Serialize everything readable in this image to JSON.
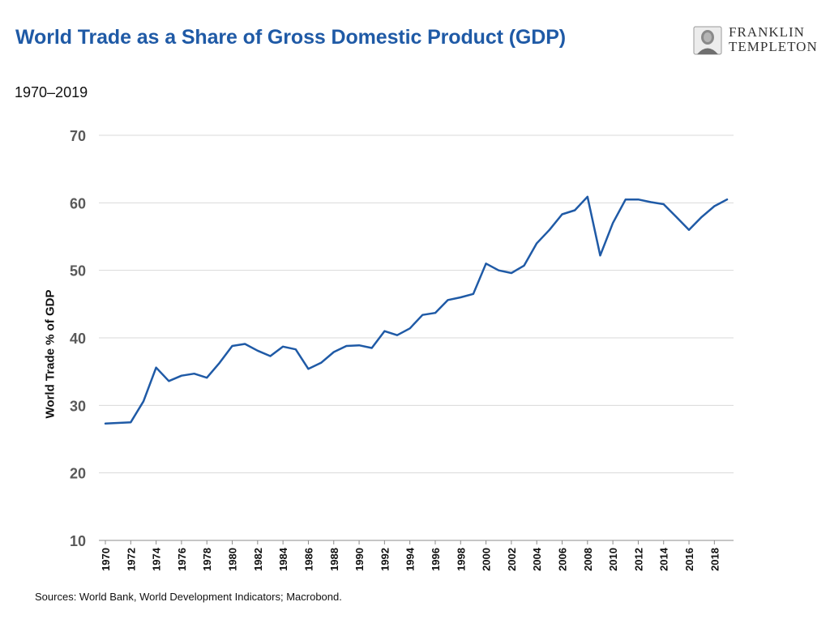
{
  "header": {
    "title": "World Trade as a Share of Gross Domestic Product (GDP)",
    "subtitle": "1970–2019"
  },
  "logo": {
    "line1": "FRANKLIN",
    "line2": "TEMPLETON",
    "icon": "portrait-emblem-icon"
  },
  "footer": {
    "source": "Sources: World Bank, World Development Indicators; Macrobond."
  },
  "colors": {
    "title": "#1f5aa6",
    "line": "#1f5aa6",
    "grid": "#d9d9d9"
  },
  "chart_data": {
    "type": "line",
    "title": "World Trade as a Share of Gross Domestic Product (GDP)",
    "subtitle": "1970–2019",
    "xlabel": "",
    "ylabel": "World Trade % of GDP",
    "ylim": [
      10,
      70
    ],
    "yticks": [
      10,
      20,
      30,
      40,
      50,
      60,
      70
    ],
    "xtick_labels": [
      "1970",
      "1972",
      "1974",
      "1976",
      "1978",
      "1980",
      "1982",
      "1984",
      "1986",
      "1988",
      "1990",
      "1992",
      "1994",
      "1996",
      "1998",
      "2000",
      "2002",
      "2004",
      "2006",
      "2008",
      "2010",
      "2012",
      "2014",
      "2016",
      "2018"
    ],
    "grid": true,
    "legend": "none",
    "x": [
      1970,
      1971,
      1972,
      1973,
      1974,
      1975,
      1976,
      1977,
      1978,
      1979,
      1980,
      1981,
      1982,
      1983,
      1984,
      1985,
      1986,
      1987,
      1988,
      1989,
      1990,
      1991,
      1992,
      1993,
      1994,
      1995,
      1996,
      1997,
      1998,
      1999,
      2000,
      2001,
      2002,
      2003,
      2004,
      2005,
      2006,
      2007,
      2008,
      2009,
      2010,
      2011,
      2012,
      2013,
      2014,
      2015,
      2016,
      2017,
      2018,
      2019
    ],
    "values": [
      27.3,
      27.4,
      27.5,
      30.6,
      35.6,
      33.6,
      34.4,
      34.7,
      34.1,
      36.3,
      38.8,
      39.1,
      38.1,
      37.3,
      38.7,
      38.3,
      35.4,
      36.3,
      37.9,
      38.8,
      38.9,
      38.5,
      41.0,
      40.4,
      41.4,
      43.4,
      43.7,
      45.6,
      46.0,
      46.5,
      51.0,
      50.0,
      49.6,
      50.7,
      54.0,
      56.0,
      58.3,
      58.9,
      60.9,
      52.2,
      57.0,
      60.5,
      60.5,
      60.1,
      59.8,
      57.9,
      56.0,
      57.9,
      59.5,
      60.5
    ]
  }
}
